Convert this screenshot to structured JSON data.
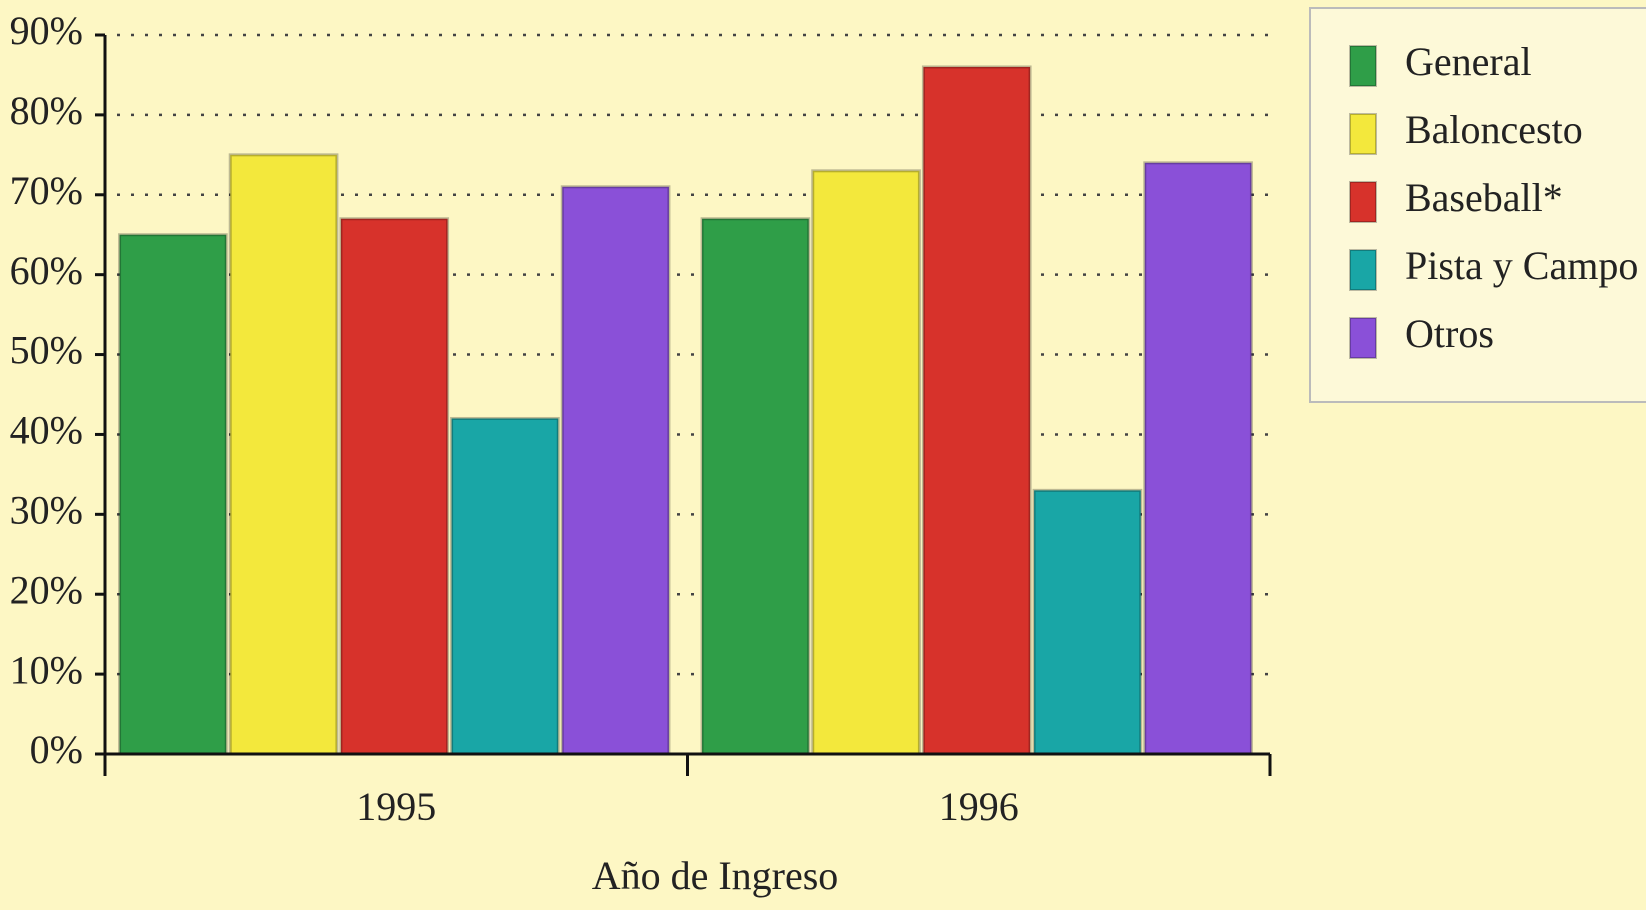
{
  "chart_data": {
    "type": "bar",
    "x_label": "Año de Ingreso",
    "categories": [
      "1995",
      "1996"
    ],
    "series": [
      {
        "name": "General",
        "color": "#2f9e48",
        "values": [
          65,
          67
        ]
      },
      {
        "name": "Baloncesto",
        "color": "#f3e83c",
        "values": [
          75,
          73
        ]
      },
      {
        "name": "Baseball*",
        "color": "#d7322b",
        "values": [
          67,
          86
        ]
      },
      {
        "name": "Pista y Campo",
        "color": "#19a6a6",
        "values": [
          42,
          33
        ]
      },
      {
        "name": "Otros",
        "color": "#8a50d8",
        "values": [
          71,
          74
        ]
      }
    ],
    "ylim": [
      0,
      90
    ],
    "yticks": [
      {
        "value": 0,
        "label": "0%"
      },
      {
        "value": 10,
        "label": "10%"
      },
      {
        "value": 20,
        "label": "20%"
      },
      {
        "value": 30,
        "label": "30%"
      },
      {
        "value": 40,
        "label": "40%"
      },
      {
        "value": 50,
        "label": "50%"
      },
      {
        "value": 60,
        "label": "60%"
      },
      {
        "value": 70,
        "label": "70%"
      },
      {
        "value": 80,
        "label": "80%"
      },
      {
        "value": 90,
        "label": "90%"
      }
    ],
    "grid": true,
    "legend": "right"
  }
}
